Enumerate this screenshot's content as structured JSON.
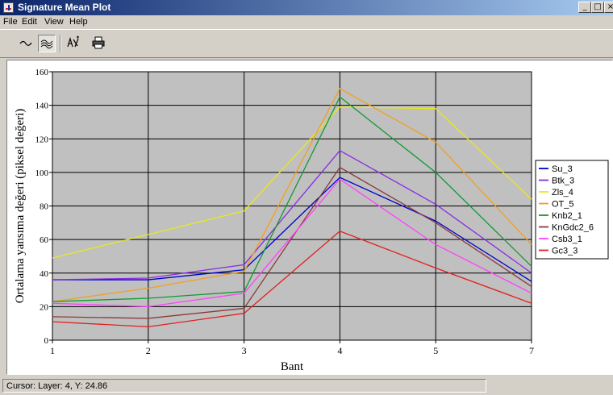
{
  "window": {
    "title": "Signature Mean Plot",
    "controls": {
      "minimize": "_",
      "maximize": "□",
      "close": "×"
    }
  },
  "menubar": {
    "items": [
      {
        "name": "file",
        "label": "File"
      },
      {
        "name": "edit",
        "label": "Edit"
      },
      {
        "name": "view",
        "label": "View"
      },
      {
        "name": "help",
        "label": "Help"
      }
    ]
  },
  "toolbar": {
    "buttons": [
      {
        "name": "line-mode",
        "icon": "wave-line-icon",
        "pressed": false
      },
      {
        "name": "multi-line-mode",
        "icon": "multi-wave-icon",
        "pressed": true
      },
      {
        "name": "select-bands",
        "icon": "band-select-icon",
        "pressed": false
      },
      {
        "name": "print",
        "icon": "printer-icon",
        "pressed": false
      }
    ]
  },
  "chart_data": {
    "type": "line",
    "title": "",
    "xlabel": "Bant",
    "ylabel": "Ortalama yansıma değeri (piksel değeri)",
    "categories": [
      "1",
      "2",
      "3",
      "4",
      "5",
      "7"
    ],
    "y_tick_labels": [
      "0",
      "20",
      "40",
      "60",
      "80",
      "100",
      "120",
      "140",
      "160"
    ],
    "ylim": [
      0,
      160
    ],
    "grid": true,
    "background": "#c0c0c0",
    "legend_position": "right",
    "series": [
      {
        "name": "Su_3",
        "color": "#0000cc",
        "values": [
          36,
          36,
          42,
          97,
          71,
          35
        ]
      },
      {
        "name": "Btk_3",
        "color": "#8a2be2",
        "values": [
          36,
          37,
          45,
          113,
          81,
          40
        ]
      },
      {
        "name": "Zls_4",
        "color": "#e8e820",
        "values": [
          49,
          63,
          77,
          139,
          138,
          84
        ]
      },
      {
        "name": "OT_5",
        "color": "#f0a020",
        "values": [
          23,
          31,
          41,
          150,
          118,
          57
        ]
      },
      {
        "name": "Knb2_1",
        "color": "#109a30",
        "values": [
          23,
          25,
          29,
          145,
          100,
          44
        ]
      },
      {
        "name": "KnGdc2_6",
        "color": "#8b3a3a",
        "values": [
          14,
          13,
          19,
          103,
          70,
          32
        ]
      },
      {
        "name": "Csb3_1",
        "color": "#ff40ff",
        "values": [
          22,
          20,
          28,
          96,
          57,
          28
        ]
      },
      {
        "name": "Gc3_3",
        "color": "#e02020",
        "values": [
          11,
          8,
          16,
          65,
          43,
          22
        ]
      }
    ]
  },
  "status": {
    "text": "Cursor: Layer: 4, Y: 24.86"
  }
}
